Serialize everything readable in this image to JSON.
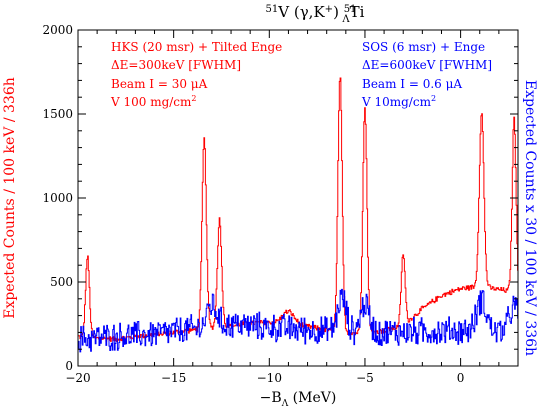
{
  "chart_data": {
    "type": "line",
    "title_html": "⁵¹V (γ,K⁺) ⁵¹ΛTi",
    "title_parts": [
      "51",
      "V (γ,K",
      "+",
      ")  ",
      "51",
      "Λ",
      "Ti"
    ],
    "xlabel_parts": [
      "−B",
      "Λ",
      " (MeV)"
    ],
    "ylabel_left": "Expected Counts / 100 keV / 336h",
    "ylabel_right": "Expected Counts x 30 / 100 keV / 336h",
    "xlim": [
      -20,
      3
    ],
    "ylim": [
      0,
      2000
    ],
    "x_ticks": [
      -20,
      -15,
      -10,
      -5,
      0
    ],
    "x_tick_labels": [
      "−20",
      "−15",
      "−10",
      "−5",
      "0"
    ],
    "y_ticks": [
      0,
      500,
      1000,
      1500,
      2000
    ],
    "y_tick_labels": [
      "0",
      "500",
      "1000",
      "1500",
      "2000"
    ],
    "grid": false,
    "colors": {
      "hks": "#ff0000",
      "sos": "#0000ff",
      "axis": "#000000"
    },
    "annotations": {
      "hks": {
        "line1": "HKS (20 msr) + Tilted Enge",
        "line2": "ΔE=300keV [FWHM]",
        "line3": "Beam I = 30 μA",
        "line4_text": "V 100 mg/cm",
        "line4_sup": "2"
      },
      "sos": {
        "line1": "SOS (6 msr) + Enge",
        "line2": "ΔE=600keV [FWHM]",
        "line3": "Beam I = 0.6 μA",
        "line4_text": "V 10mg/cm",
        "line4_sup": "2"
      }
    },
    "series": [
      {
        "name": "HKS (20 msr) + Tilted Enge",
        "background": [
          [
            -20,
            175
          ],
          [
            -19,
            165
          ],
          [
            -18,
            160
          ],
          [
            -17,
            175
          ],
          [
            -16,
            190
          ],
          [
            -15,
            200
          ],
          [
            -14,
            215
          ],
          [
            -13,
            230
          ],
          [
            -12,
            240
          ],
          [
            -11,
            255
          ],
          [
            -10,
            260
          ],
          [
            -9,
            255
          ],
          [
            -8,
            235
          ],
          [
            -7,
            215
          ],
          [
            -6,
            200
          ],
          [
            -5,
            195
          ],
          [
            -4,
            210
          ],
          [
            -3,
            240
          ],
          [
            -2,
            340
          ],
          [
            -1,
            420
          ],
          [
            0,
            460
          ],
          [
            1,
            475
          ],
          [
            2,
            455
          ],
          [
            3,
            440
          ]
        ],
        "peaks": [
          {
            "x": -19.5,
            "height": 480,
            "sigma": 0.1
          },
          {
            "x": -13.4,
            "height": 1130,
            "sigma": 0.11
          },
          {
            "x": -12.6,
            "height": 640,
            "sigma": 0.11
          },
          {
            "x": -9.0,
            "height": 70,
            "sigma": 0.3
          },
          {
            "x": -6.3,
            "height": 1520,
            "sigma": 0.11
          },
          {
            "x": -5.0,
            "height": 1340,
            "sigma": 0.11
          },
          {
            "x": -3.0,
            "height": 430,
            "sigma": 0.1
          },
          {
            "x": 1.1,
            "height": 1040,
            "sigma": 0.12
          },
          {
            "x": 2.8,
            "height": 1030,
            "sigma": 0.1
          }
        ],
        "noise": 18
      },
      {
        "name": "SOS (6 msr) + Enge",
        "background": [
          [
            -20,
            160
          ],
          [
            -18,
            175
          ],
          [
            -16,
            190
          ],
          [
            -14,
            220
          ],
          [
            -12,
            250
          ],
          [
            -10,
            230
          ],
          [
            -8,
            215
          ],
          [
            -6,
            205
          ],
          [
            -4,
            200
          ],
          [
            -2,
            205
          ],
          [
            0,
            210
          ],
          [
            2,
            205
          ],
          [
            3,
            200
          ]
        ],
        "peaks": [
          {
            "x": -13.0,
            "height": 130,
            "sigma": 0.25
          },
          {
            "x": -6.2,
            "height": 200,
            "sigma": 0.22
          },
          {
            "x": -5.0,
            "height": 170,
            "sigma": 0.22
          },
          {
            "x": 1.1,
            "height": 190,
            "sigma": 0.25
          },
          {
            "x": 2.8,
            "height": 150,
            "sigma": 0.25
          }
        ],
        "noise": 95
      }
    ]
  }
}
